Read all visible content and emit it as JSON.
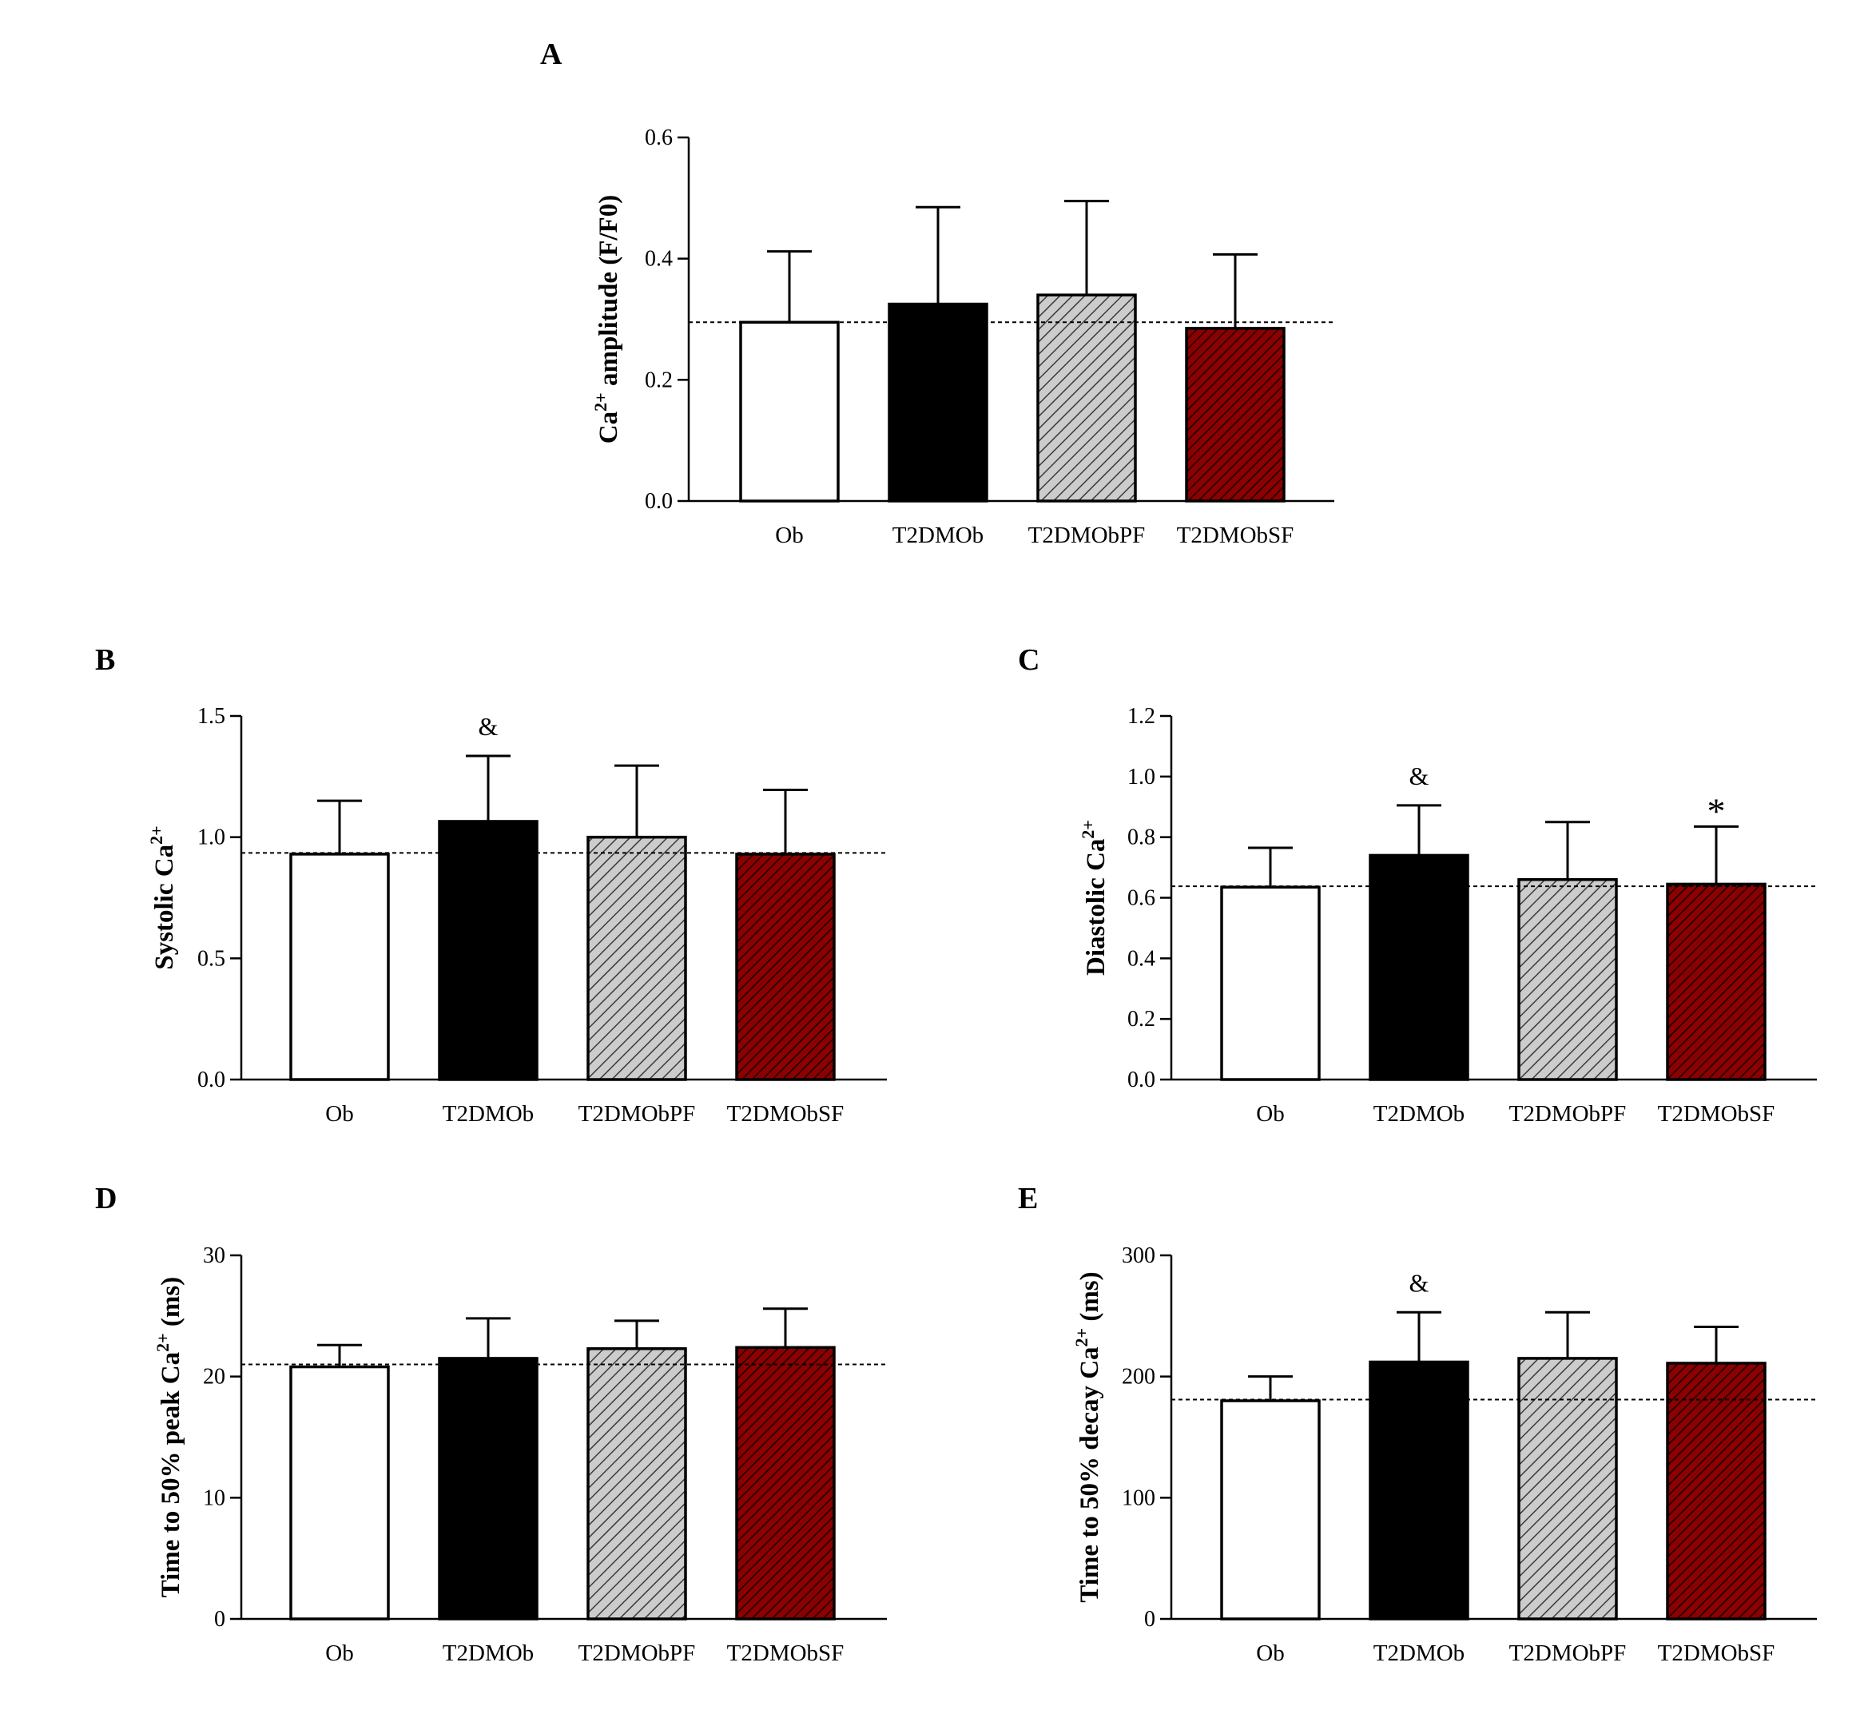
{
  "colors": {
    "ob": "#ffffff",
    "t2dmob": "#000000",
    "pf_fill": "#cccccc",
    "pf_hatch": "#3a3a3a",
    "sf_fill": "#8b0000",
    "sf_hatch": "#1a0000",
    "axis": "#000000"
  },
  "chart_data": [
    {
      "type": "bar",
      "panel": "A",
      "ylabel_main": "Ca",
      "ylabel_sup": "2+",
      "ylabel_rest": " amplitude (F/F0)",
      "categories": [
        "Ob",
        "T2DMOb",
        "T2DMObPF",
        "T2DMObSF"
      ],
      "values": [
        0.295,
        0.325,
        0.34,
        0.285
      ],
      "errors": [
        0.117,
        0.16,
        0.155,
        0.122
      ],
      "annotations": [
        "",
        "",
        "",
        ""
      ],
      "reference_line": 0.295,
      "ylim": [
        0,
        0.6
      ],
      "yticks": [
        0.0,
        0.2,
        0.4,
        0.6
      ],
      "ytick_labels": [
        "0.0",
        "0.2",
        "0.4",
        "0.6"
      ]
    },
    {
      "type": "bar",
      "panel": "B",
      "ylabel_main": "Systolic Ca",
      "ylabel_sup": "2+",
      "ylabel_rest": "",
      "categories": [
        "Ob",
        "T2DMOb",
        "T2DMObPF",
        "T2DMObSF"
      ],
      "values": [
        0.93,
        1.065,
        1.0,
        0.93
      ],
      "errors": [
        0.22,
        0.27,
        0.295,
        0.265
      ],
      "annotations": [
        "",
        "&",
        "",
        ""
      ],
      "reference_line": 0.935,
      "ylim": [
        0,
        1.5
      ],
      "yticks": [
        0.0,
        0.5,
        1.0,
        1.5
      ],
      "ytick_labels": [
        "0.0",
        "0.5",
        "1.0",
        "1.5"
      ]
    },
    {
      "type": "bar",
      "panel": "C",
      "ylabel_main": "Diastolic Ca",
      "ylabel_sup": "2+",
      "ylabel_rest": "",
      "categories": [
        "Ob",
        "T2DMOb",
        "T2DMObPF",
        "T2DMObSF"
      ],
      "values": [
        0.635,
        0.74,
        0.66,
        0.645
      ],
      "errors": [
        0.13,
        0.165,
        0.19,
        0.19
      ],
      "annotations": [
        "",
        "&",
        "",
        "*"
      ],
      "reference_line": 0.638,
      "ylim": [
        0,
        1.2
      ],
      "yticks": [
        0.0,
        0.2,
        0.4,
        0.6,
        0.8,
        1.0,
        1.2
      ],
      "ytick_labels": [
        "0.0",
        "0.2",
        "0.4",
        "0.6",
        "0.8",
        "1.0",
        "1.2"
      ]
    },
    {
      "type": "bar",
      "panel": "D",
      "ylabel_main": "Time to 50% peak Ca",
      "ylabel_sup": "2+",
      "ylabel_rest": " (ms)",
      "categories": [
        "Ob",
        "T2DMOb",
        "T2DMObPF",
        "T2DMObSF"
      ],
      "values": [
        20.8,
        21.5,
        22.3,
        22.4
      ],
      "errors": [
        1.8,
        3.3,
        2.3,
        3.2
      ],
      "annotations": [
        "",
        "",
        "",
        ""
      ],
      "reference_line": 21.0,
      "ylim": [
        0,
        30
      ],
      "yticks": [
        0,
        10,
        20,
        30
      ],
      "ytick_labels": [
        "0",
        "10",
        "20",
        "30"
      ]
    },
    {
      "type": "bar",
      "panel": "E",
      "ylabel_main": "Time to 50% decay Ca",
      "ylabel_sup": "2+",
      "ylabel_rest": " (ms)",
      "categories": [
        "Ob",
        "T2DMOb",
        "T2DMObPF",
        "T2DMObSF"
      ],
      "values": [
        180,
        212,
        215,
        211
      ],
      "errors": [
        20,
        41,
        38,
        30
      ],
      "annotations": [
        "",
        "&",
        "",
        ""
      ],
      "reference_line": 181,
      "ylim": [
        0,
        300
      ],
      "yticks": [
        0,
        100,
        200,
        300
      ],
      "ytick_labels": [
        "0",
        "100",
        "200",
        "300"
      ]
    }
  ]
}
